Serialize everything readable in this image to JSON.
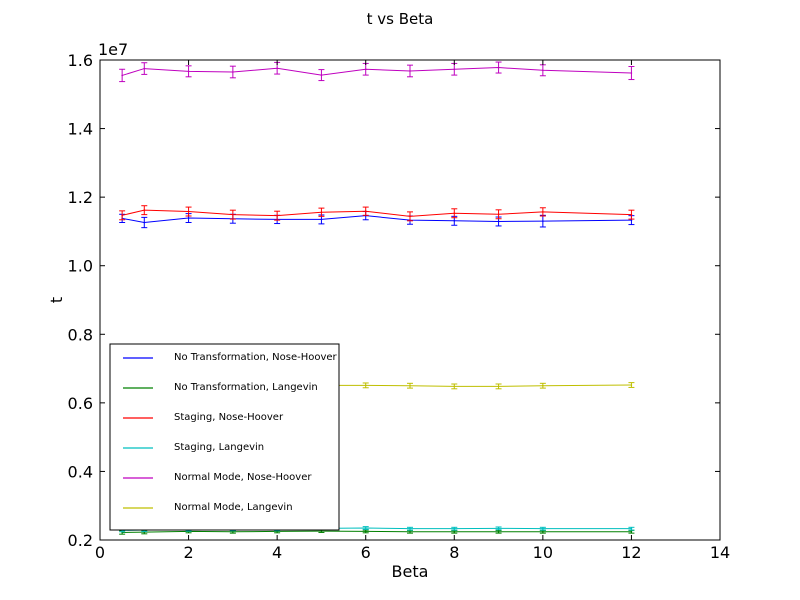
{
  "chart_data": {
    "type": "line",
    "title": "t vs Beta",
    "xlabel": "Beta",
    "ylabel": "t",
    "y_offset_label": "1e7",
    "xlim": [
      0,
      14
    ],
    "ylim": [
      0.2,
      1.6
    ],
    "xticks": [
      0,
      2,
      4,
      6,
      8,
      10,
      12,
      14
    ],
    "xtick_labels": [
      "0",
      "2",
      "4",
      "6",
      "8",
      "10",
      "12",
      "14"
    ],
    "yticks": [
      0.2,
      0.4,
      0.6,
      0.8,
      1.0,
      1.2,
      1.4,
      1.6
    ],
    "ytick_labels": [
      "0.2",
      "0.4",
      "0.6",
      "0.8",
      "1.0",
      "1.2",
      "1.4",
      "1.6"
    ],
    "grid": false,
    "legend_position": "lower-left",
    "x": [
      0.5,
      1,
      2,
      3,
      4,
      5,
      6,
      7,
      8,
      9,
      10,
      12
    ],
    "series": [
      {
        "name": "No Transformation, Nose-Hoover",
        "color": "#0000ff",
        "values": [
          1.138,
          1.126,
          1.139,
          1.137,
          1.135,
          1.135,
          1.146,
          1.133,
          1.131,
          1.129,
          1.13,
          1.133
        ],
        "errors": [
          0.012,
          0.015,
          0.013,
          0.013,
          0.012,
          0.013,
          0.012,
          0.012,
          0.013,
          0.013,
          0.017,
          0.013
        ]
      },
      {
        "name": "No Transformation, Langevin",
        "color": "#008000",
        "values": [
          0.222,
          0.223,
          0.225,
          0.224,
          0.225,
          0.226,
          0.225,
          0.224,
          0.224,
          0.224,
          0.224,
          0.224
        ],
        "errors": [
          0.005,
          0.005,
          0.004,
          0.004,
          0.004,
          0.004,
          0.004,
          0.004,
          0.004,
          0.004,
          0.004,
          0.004
        ]
      },
      {
        "name": "Staging, Nose-Hoover",
        "color": "#ff0000",
        "values": [
          1.147,
          1.162,
          1.158,
          1.149,
          1.146,
          1.156,
          1.159,
          1.144,
          1.153,
          1.15,
          1.157,
          1.149
        ],
        "errors": [
          0.013,
          0.013,
          0.013,
          0.013,
          0.013,
          0.012,
          0.012,
          0.013,
          0.013,
          0.013,
          0.012,
          0.013
        ]
      },
      {
        "name": "Staging, Langevin",
        "color": "#00bfbf",
        "values": [
          0.228,
          0.229,
          0.23,
          0.231,
          0.231,
          0.234,
          0.235,
          0.233,
          0.233,
          0.234,
          0.233,
          0.233
        ],
        "errors": [
          0.004,
          0.004,
          0.004,
          0.004,
          0.004,
          0.004,
          0.004,
          0.004,
          0.004,
          0.004,
          0.004,
          0.004
        ]
      },
      {
        "name": "Normal Mode, Nose-Hoover",
        "color": "#bf00bf",
        "values": [
          1.555,
          1.575,
          1.567,
          1.565,
          1.576,
          1.556,
          1.573,
          1.568,
          1.573,
          1.578,
          1.57,
          1.562
        ],
        "errors": [
          0.018,
          0.017,
          0.016,
          0.017,
          0.017,
          0.016,
          0.017,
          0.017,
          0.017,
          0.016,
          0.016,
          0.019
        ]
      },
      {
        "name": "Normal Mode, Langevin",
        "color": "#bfbf00",
        "values": [
          0.65,
          0.651,
          0.652,
          0.651,
          0.652,
          0.651,
          0.651,
          0.65,
          0.648,
          0.648,
          0.65,
          0.652
        ],
        "errors": [
          0.007,
          0.007,
          0.007,
          0.007,
          0.007,
          0.007,
          0.007,
          0.007,
          0.007,
          0.007,
          0.007,
          0.007
        ]
      }
    ]
  }
}
